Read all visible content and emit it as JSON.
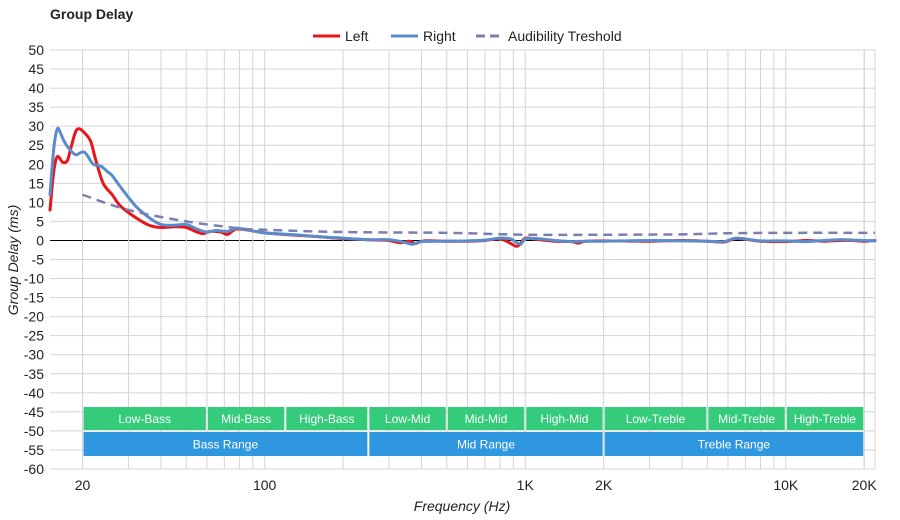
{
  "chart_data": {
    "type": "line",
    "title": "Group Delay",
    "xlabel": "Frequency (Hz)",
    "ylabel": "Group Delay (ms)",
    "x_scale": "log",
    "xlim": [
      15,
      22000
    ],
    "ylim": [
      -60,
      50
    ],
    "y_ticks": [
      50,
      45,
      40,
      35,
      30,
      25,
      20,
      15,
      10,
      5,
      0,
      -5,
      -10,
      -15,
      -20,
      -25,
      -30,
      -35,
      -40,
      -45,
      -50,
      -55,
      -60
    ],
    "x_tick_labels": [
      {
        "value": 20,
        "label": "20"
      },
      {
        "value": 100,
        "label": "100"
      },
      {
        "value": 1000,
        "label": "1K"
      },
      {
        "value": 2000,
        "label": "2K"
      },
      {
        "value": 10000,
        "label": "10K"
      },
      {
        "value": 20000,
        "label": "20K"
      }
    ],
    "grid": true,
    "legend": {
      "placement": "top-center"
    },
    "series": [
      {
        "name": "Left",
        "color": "#e8161b",
        "style": "solid",
        "points": [
          [
            15,
            8
          ],
          [
            15.5,
            18
          ],
          [
            16,
            22
          ],
          [
            16.8,
            20.5
          ],
          [
            17.5,
            21
          ],
          [
            18,
            24
          ],
          [
            18.8,
            28.5
          ],
          [
            19.5,
            29.3
          ],
          [
            20.5,
            28
          ],
          [
            21.5,
            26
          ],
          [
            22.5,
            21
          ],
          [
            24,
            15
          ],
          [
            26,
            12
          ],
          [
            28,
            9
          ],
          [
            32,
            6
          ],
          [
            36,
            4
          ],
          [
            40,
            3.4
          ],
          [
            45,
            3.6
          ],
          [
            50,
            3.4
          ],
          [
            55,
            2.2
          ],
          [
            58,
            1.8
          ],
          [
            62,
            2.4
          ],
          [
            68,
            2.2
          ],
          [
            72,
            1.6
          ],
          [
            78,
            3
          ],
          [
            90,
            2.5
          ],
          [
            100,
            2
          ],
          [
            130,
            1.4
          ],
          [
            160,
            1
          ],
          [
            200,
            0.5
          ],
          [
            250,
            0.2
          ],
          [
            300,
            0
          ],
          [
            330,
            -0.6
          ],
          [
            360,
            -0.2
          ],
          [
            380,
            -0.8
          ],
          [
            410,
            -0.1
          ],
          [
            500,
            -0.2
          ],
          [
            600,
            -0.2
          ],
          [
            700,
            0
          ],
          [
            800,
            0.4
          ],
          [
            880,
            -0.8
          ],
          [
            920,
            -1.5
          ],
          [
            950,
            -1.2
          ],
          [
            1000,
            0.6
          ],
          [
            1100,
            0.3
          ],
          [
            1300,
            -0.2
          ],
          [
            1500,
            -0.3
          ],
          [
            1600,
            -0.7
          ],
          [
            1700,
            -0.2
          ],
          [
            2000,
            -0.1
          ],
          [
            3000,
            -0.2
          ],
          [
            4000,
            0
          ],
          [
            5000,
            -0.2
          ],
          [
            5800,
            -0.4
          ],
          [
            6500,
            0.5
          ],
          [
            8000,
            -0.2
          ],
          [
            10000,
            -0.3
          ],
          [
            12000,
            0
          ],
          [
            14000,
            -0.2
          ],
          [
            16000,
            0
          ],
          [
            18000,
            0
          ],
          [
            20000,
            -0.2
          ],
          [
            22000,
            0
          ]
        ]
      },
      {
        "name": "Right",
        "color": "#5a8ccb",
        "style": "solid",
        "points": [
          [
            15,
            12
          ],
          [
            15.5,
            24
          ],
          [
            16,
            29.3
          ],
          [
            16.5,
            28
          ],
          [
            17,
            26
          ],
          [
            17.8,
            24
          ],
          [
            18.8,
            22.5
          ],
          [
            19.6,
            23
          ],
          [
            20.3,
            23.2
          ],
          [
            21,
            22
          ],
          [
            22,
            20
          ],
          [
            23.5,
            19.5
          ],
          [
            25,
            18
          ],
          [
            26,
            17
          ],
          [
            28,
            14
          ],
          [
            32,
            9
          ],
          [
            36,
            6
          ],
          [
            40,
            4.2
          ],
          [
            45,
            4
          ],
          [
            50,
            4.2
          ],
          [
            55,
            3
          ],
          [
            60,
            2.2
          ],
          [
            65,
            2.6
          ],
          [
            72,
            2.4
          ],
          [
            78,
            3.2
          ],
          [
            90,
            2.5
          ],
          [
            100,
            2
          ],
          [
            130,
            1.5
          ],
          [
            160,
            1
          ],
          [
            200,
            0.6
          ],
          [
            250,
            0.2
          ],
          [
            300,
            0.2
          ],
          [
            340,
            -0.4
          ],
          [
            370,
            -1
          ],
          [
            400,
            -0.3
          ],
          [
            500,
            -0.2
          ],
          [
            600,
            -0.1
          ],
          [
            700,
            0.1
          ],
          [
            800,
            0.6
          ],
          [
            880,
            0.4
          ],
          [
            920,
            -0.4
          ],
          [
            960,
            -1
          ],
          [
            1000,
            0.4
          ],
          [
            1100,
            0.5
          ],
          [
            1300,
            0
          ],
          [
            1500,
            -0.3
          ],
          [
            1700,
            -0.2
          ],
          [
            2000,
            -0.2
          ],
          [
            3000,
            0
          ],
          [
            4000,
            -0.1
          ],
          [
            5000,
            -0.2
          ],
          [
            5800,
            -0.3
          ],
          [
            6500,
            0.6
          ],
          [
            8000,
            -0.1
          ],
          [
            10000,
            -0.1
          ],
          [
            12000,
            -0.3
          ],
          [
            14000,
            0
          ],
          [
            16000,
            0.2
          ],
          [
            18000,
            0.1
          ],
          [
            20000,
            0
          ],
          [
            22000,
            -0.1
          ]
        ]
      },
      {
        "name": "Audibility Treshold",
        "color": "#7b7fad",
        "style": "dashed",
        "points": [
          [
            20,
            12
          ],
          [
            30,
            8
          ],
          [
            50,
            5
          ],
          [
            80,
            3.2
          ],
          [
            100,
            2.8
          ],
          [
            200,
            2.2
          ],
          [
            500,
            2
          ],
          [
            1000,
            1.5
          ],
          [
            2000,
            1.5
          ],
          [
            4000,
            1.6
          ],
          [
            6000,
            1.9
          ],
          [
            10000,
            2
          ],
          [
            22000,
            2
          ]
        ]
      }
    ],
    "range_bands": {
      "top_row": [
        {
          "label": "Low-Bass",
          "from": 20,
          "to": 60
        },
        {
          "label": "Mid-Bass",
          "from": 60,
          "to": 120
        },
        {
          "label": "High-Bass",
          "from": 120,
          "to": 250
        },
        {
          "label": "Low-Mid",
          "from": 250,
          "to": 500
        },
        {
          "label": "Mid-Mid",
          "from": 500,
          "to": 1000
        },
        {
          "label": "High-Mid",
          "from": 1000,
          "to": 2000
        },
        {
          "label": "Low-Treble",
          "from": 2000,
          "to": 5000
        },
        {
          "label": "Mid-Treble",
          "from": 5000,
          "to": 10000
        },
        {
          "label": "High-Treble",
          "from": 10000,
          "to": 20000
        }
      ],
      "bottom_row": [
        {
          "label": "Bass Range",
          "from": 20,
          "to": 250
        },
        {
          "label": "Mid Range",
          "from": 250,
          "to": 2000
        },
        {
          "label": "Treble Range",
          "from": 2000,
          "to": 20000
        }
      ],
      "top_color": "#34cc7a",
      "bottom_color": "#2f96e0"
    }
  }
}
